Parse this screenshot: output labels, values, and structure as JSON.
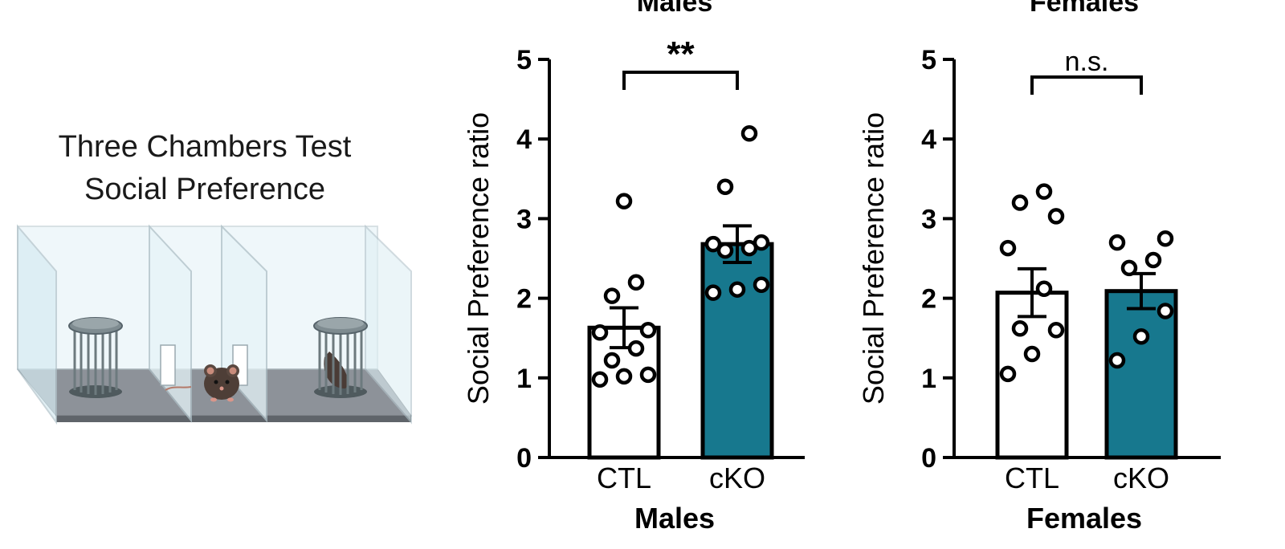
{
  "setup": {
    "title_line1": "Three Chambers Test",
    "title_line2": "Social Preference"
  },
  "chart_data": [
    {
      "type": "bar",
      "title": "Males",
      "xlabel": "Males",
      "ylabel": "Social Preference ratio",
      "ylim": [
        0,
        5
      ],
      "yticks": [
        0,
        1,
        2,
        3,
        4,
        5
      ],
      "categories": [
        "CTL",
        "cKO"
      ],
      "values": [
        1.63,
        2.68
      ],
      "errors": [
        0.25,
        0.23
      ],
      "points": [
        [
          0.98,
          1.02,
          1.04,
          1.22,
          1.37,
          1.57,
          1.6,
          2.03,
          2.2,
          3.22
        ],
        [
          2.07,
          2.11,
          2.17,
          2.6,
          2.63,
          2.68,
          2.7,
          3.4,
          4.07
        ]
      ],
      "significance": "**",
      "colors": {
        "CTL": "#ffffff",
        "cKO": "#17788e"
      }
    },
    {
      "type": "bar",
      "title": "Females",
      "xlabel": "Females",
      "ylabel": "Social Preference ratio",
      "ylim": [
        0,
        5
      ],
      "yticks": [
        0,
        1,
        2,
        3,
        4,
        5
      ],
      "categories": [
        "CTL",
        "cKO"
      ],
      "values": [
        2.07,
        2.09
      ],
      "errors": [
        0.3,
        0.22
      ],
      "points": [
        [
          1.05,
          1.3,
          1.6,
          1.62,
          2.12,
          2.63,
          3.03,
          3.2,
          3.34
        ],
        [
          1.22,
          1.52,
          1.84,
          2.38,
          2.48,
          2.7,
          2.75
        ]
      ],
      "significance": "n.s.",
      "colors": {
        "CTL": "#ffffff",
        "cKO": "#17788e"
      }
    }
  ]
}
